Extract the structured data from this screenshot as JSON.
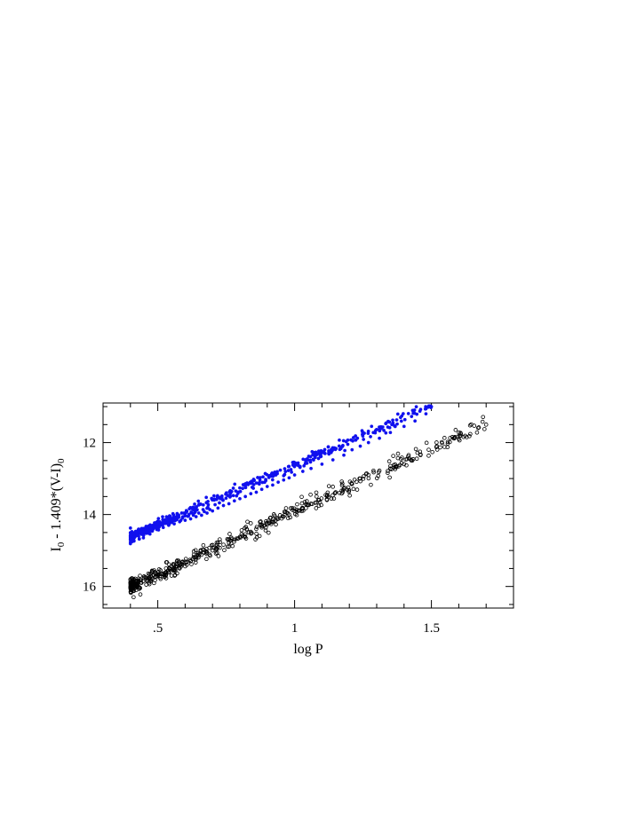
{
  "chart_data": {
    "type": "scatter",
    "title": "",
    "xlabel": "log P",
    "ylabel": "I₀ - 1.409*(V-I)₀",
    "ylabel_parts": {
      "a": "I",
      "a_sub": "0",
      "b": " - 1.409*(V-I)",
      "b_sub": "0"
    },
    "xlim": [
      0.3,
      1.8
    ],
    "ylim": [
      16.6,
      10.9
    ],
    "y_inverted": true,
    "x_major_ticks": [
      0.5,
      1,
      1.5
    ],
    "x_tick_labels": [
      ".5",
      "1",
      "1.5"
    ],
    "x_minor_step": 0.1,
    "y_major_ticks": [
      12,
      14,
      16
    ],
    "y_tick_labels": [
      "12",
      "14",
      "16"
    ],
    "y_minor_step": 0.5,
    "grid": false,
    "legend": "none",
    "series": [
      {
        "marker": "filled-circle",
        "color": "#1010ee",
        "line": [
          [
            0.4,
            14.62
          ],
          [
            1.5,
            10.98
          ]
        ],
        "points": [
          [
            0.4,
            14.65
          ],
          [
            0.41,
            14.55
          ],
          [
            0.42,
            14.48
          ],
          [
            0.43,
            14.6
          ],
          [
            0.44,
            14.5
          ],
          [
            0.45,
            14.42
          ],
          [
            0.46,
            14.52
          ],
          [
            0.47,
            14.38
          ],
          [
            0.48,
            14.46
          ],
          [
            0.49,
            14.33
          ],
          [
            0.5,
            14.4
          ],
          [
            0.51,
            14.3
          ],
          [
            0.52,
            14.36
          ],
          [
            0.53,
            14.24
          ],
          [
            0.54,
            14.3
          ],
          [
            0.55,
            14.2
          ],
          [
            0.56,
            14.26
          ],
          [
            0.57,
            14.14
          ],
          [
            0.58,
            14.2
          ],
          [
            0.59,
            14.1
          ],
          [
            0.6,
            14.16
          ],
          [
            0.61,
            14.05
          ],
          [
            0.62,
            14.12
          ],
          [
            0.63,
            14.02
          ],
          [
            0.64,
            14.06
          ],
          [
            0.65,
            13.96
          ],
          [
            0.66,
            14.02
          ],
          [
            0.67,
            13.92
          ],
          [
            0.68,
            13.96
          ],
          [
            0.69,
            13.86
          ],
          [
            0.7,
            13.9
          ],
          [
            0.72,
            13.82
          ],
          [
            0.74,
            13.75
          ],
          [
            0.76,
            13.7
          ],
          [
            0.78,
            13.62
          ],
          [
            0.8,
            13.56
          ],
          [
            0.82,
            13.5
          ],
          [
            0.84,
            13.42
          ],
          [
            0.86,
            13.38
          ],
          [
            0.88,
            13.3
          ],
          [
            0.9,
            13.22
          ],
          [
            0.92,
            13.18
          ],
          [
            0.94,
            13.1
          ],
          [
            0.96,
            13.04
          ],
          [
            0.98,
            12.98
          ],
          [
            1.0,
            12.9
          ],
          [
            1.03,
            12.8
          ],
          [
            1.06,
            12.72
          ],
          [
            1.1,
            12.6
          ],
          [
            1.14,
            12.48
          ],
          [
            1.18,
            12.35
          ],
          [
            1.21,
            12.2
          ],
          [
            1.24,
            12.1
          ],
          [
            1.27,
            12.0
          ],
          [
            1.31,
            11.88
          ],
          [
            1.35,
            11.72
          ],
          [
            1.4,
            11.55
          ],
          [
            1.44,
            11.4
          ],
          [
            1.48,
            11.2
          ],
          [
            1.5,
            11.0
          ]
        ]
      },
      {
        "marker": "open-circle",
        "color": "#000000",
        "line": [
          [
            0.4,
            16.0
          ],
          [
            1.7,
            11.48
          ]
        ],
        "points": [
          [
            0.4,
            16.02
          ],
          [
            0.41,
            15.85
          ],
          [
            0.42,
            15.95
          ],
          [
            0.43,
            15.78
          ],
          [
            0.44,
            15.9
          ],
          [
            0.45,
            15.72
          ],
          [
            0.46,
            15.84
          ],
          [
            0.47,
            15.66
          ],
          [
            0.48,
            15.78
          ],
          [
            0.49,
            15.6
          ],
          [
            0.5,
            15.72
          ],
          [
            0.51,
            15.55
          ],
          [
            0.52,
            15.66
          ],
          [
            0.53,
            15.5
          ],
          [
            0.54,
            15.6
          ],
          [
            0.55,
            15.44
          ],
          [
            0.56,
            15.55
          ],
          [
            0.57,
            15.38
          ],
          [
            0.58,
            15.5
          ],
          [
            0.59,
            15.32
          ],
          [
            0.6,
            15.44
          ],
          [
            0.62,
            15.3
          ],
          [
            0.64,
            15.2
          ],
          [
            0.66,
            15.12
          ],
          [
            0.68,
            15.05
          ],
          [
            0.7,
            15.0
          ],
          [
            0.72,
            14.9
          ],
          [
            0.74,
            14.84
          ],
          [
            0.76,
            14.78
          ],
          [
            0.78,
            14.7
          ],
          [
            0.8,
            14.62
          ],
          [
            0.82,
            14.55
          ],
          [
            0.84,
            14.48
          ],
          [
            0.86,
            14.4
          ],
          [
            0.88,
            14.36
          ],
          [
            0.9,
            14.28
          ],
          [
            0.92,
            14.2
          ],
          [
            0.94,
            14.12
          ],
          [
            0.96,
            14.06
          ],
          [
            0.98,
            14.0
          ],
          [
            1.0,
            13.9
          ],
          [
            1.03,
            13.82
          ],
          [
            1.06,
            13.7
          ],
          [
            1.09,
            13.6
          ],
          [
            1.12,
            13.48
          ],
          [
            1.15,
            13.38
          ],
          [
            1.18,
            13.28
          ],
          [
            1.21,
            13.15
          ],
          [
            1.24,
            13.0
          ],
          [
            1.27,
            12.9
          ],
          [
            1.31,
            12.78
          ],
          [
            1.35,
            12.72
          ],
          [
            1.4,
            12.6
          ],
          [
            1.43,
            12.5
          ],
          [
            1.46,
            12.35
          ],
          [
            1.49,
            12.2
          ],
          [
            1.52,
            12.1
          ],
          [
            1.56,
            11.98
          ],
          [
            1.6,
            11.9
          ],
          [
            1.7,
            11.5
          ]
        ]
      }
    ]
  }
}
